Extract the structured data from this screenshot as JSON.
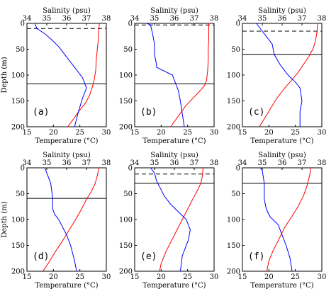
{
  "chart_data": [
    {
      "type": "line",
      "panel_label": "(a)",
      "top_xlabel": "Salinity (psu)",
      "bottom_xlabel": "Temperature (°C)",
      "ylabel": "Depth (m)",
      "salinity_ticks": [
        "34",
        "35",
        "36",
        "37",
        "38"
      ],
      "temperature_ticks": [
        "15",
        "20",
        "25",
        "30"
      ],
      "depth_ticks": [
        "0",
        "50",
        "100",
        "150",
        "200"
      ],
      "xlim_salinity": [
        34,
        38
      ],
      "xlim_temperature": [
        15,
        30
      ],
      "ylim_depth": [
        0,
        200
      ],
      "mixed_layer_depth": 10,
      "thermocline_depth": 117,
      "series": [
        {
          "color": "#ff0000",
          "x": [
            28.7,
            28.6,
            28.5,
            28.3,
            28.1,
            28.0,
            27.7,
            27.3,
            26.8,
            26.0,
            24.8,
            23.8,
            22.7
          ],
          "depth": [
            0,
            10,
            30,
            50,
            70,
            90,
            110,
            125,
            140,
            155,
            170,
            185,
            200
          ]
        },
        {
          "color": "#0000ff",
          "x": [
            34.4,
            34.5,
            34.9,
            35.2,
            35.6,
            35.9,
            36.2,
            36.5,
            36.8,
            37.0,
            36.8,
            36.6,
            36.4
          ],
          "depth": [
            0,
            10,
            20,
            30,
            45,
            60,
            75,
            90,
            105,
            125,
            145,
            170,
            200
          ]
        }
      ]
    },
    {
      "type": "line",
      "panel_label": "(b)",
      "top_xlabel": "Salinity (psu)",
      "bottom_xlabel": "Temperature (°C)",
      "ylabel": "",
      "salinity_ticks": [
        "34",
        "35",
        "36",
        "37",
        "38"
      ],
      "temperature_ticks": [
        "15",
        "20",
        "25",
        "30"
      ],
      "depth_ticks": [
        "0",
        "50",
        "100",
        "150",
        "200"
      ],
      "xlim_salinity": [
        34,
        38
      ],
      "xlim_temperature": [
        15,
        30
      ],
      "ylim_depth": [
        0,
        200
      ],
      "mixed_layer_depth": 3,
      "thermocline_depth": 117,
      "series": [
        {
          "color": "#ff0000",
          "x": [
            29.0,
            29.0,
            29.0,
            28.9,
            28.9,
            28.8,
            28.6,
            28.2,
            27.4,
            26.0,
            24.6,
            23.2,
            21.8
          ],
          "depth": [
            0,
            10,
            30,
            50,
            70,
            90,
            110,
            120,
            130,
            145,
            160,
            180,
            200
          ]
        },
        {
          "color": "#0000ff",
          "x": [
            34.6,
            34.8,
            34.9,
            35.0,
            35.0,
            35.1,
            35.1,
            35.9,
            36.2,
            36.3,
            36.4,
            36.5
          ],
          "depth": [
            0,
            3,
            20,
            40,
            60,
            80,
            85,
            100,
            130,
            150,
            175,
            200
          ]
        }
      ]
    },
    {
      "type": "line",
      "panel_label": "(c)",
      "top_xlabel": "Salinity (psu)",
      "bottom_xlabel": "Temperature (°C)",
      "ylabel": "",
      "salinity_ticks": [
        "34",
        "35",
        "36",
        "37",
        "38"
      ],
      "temperature_ticks": [
        "15",
        "20",
        "25",
        "30"
      ],
      "depth_ticks": [
        "0",
        "50",
        "100",
        "150",
        "200"
      ],
      "xlim_salinity": [
        34,
        38
      ],
      "xlim_temperature": [
        15,
        30
      ],
      "ylim_depth": [
        0,
        200
      ],
      "mixed_layer_depth": 15,
      "thermocline_depth": 60,
      "series": [
        {
          "color": "#ff0000",
          "x": [
            29.2,
            29.1,
            28.8,
            28.3,
            27.5,
            26.5,
            25.5,
            24.3,
            23.0,
            21.5,
            20.0,
            18.2
          ],
          "depth": [
            0,
            15,
            35,
            50,
            65,
            80,
            95,
            110,
            125,
            145,
            170,
            200
          ]
        },
        {
          "color": "#0000ff",
          "x": [
            34.7,
            35.0,
            35.2,
            35.5,
            35.6,
            35.9,
            36.3,
            36.7,
            36.9,
            37.0,
            36.9,
            36.9
          ],
          "depth": [
            0,
            15,
            25,
            40,
            60,
            80,
            100,
            115,
            125,
            150,
            170,
            200
          ]
        }
      ]
    },
    {
      "type": "line",
      "panel_label": "(d)",
      "top_xlabel": "Salinity (psu)",
      "bottom_xlabel": "Temperature (°C)",
      "ylabel": "Depth (m)",
      "salinity_ticks": [
        "34",
        "35",
        "36",
        "37",
        "38"
      ],
      "temperature_ticks": [
        "15",
        "20",
        "25",
        "30"
      ],
      "depth_ticks": [
        "0",
        "50",
        "100",
        "150",
        "200"
      ],
      "xlim_salinity": [
        34,
        38
      ],
      "xlim_temperature": [
        15,
        30
      ],
      "ylim_depth": [
        0,
        200
      ],
      "mixed_layer_depth": 0,
      "thermocline_depth": 59,
      "series": [
        {
          "color": "#ff0000",
          "x": [
            28.6,
            28.3,
            27.9,
            27.2,
            26.3,
            25.3,
            24.2,
            23.0,
            21.8,
            20.5,
            19.0,
            18.0
          ],
          "depth": [
            0,
            15,
            30,
            45,
            60,
            80,
            100,
            120,
            140,
            160,
            185,
            200
          ]
        },
        {
          "color": "#0000ff",
          "x": [
            34.9,
            35.0,
            35.2,
            35.3,
            35.3,
            35.4,
            35.6,
            35.8,
            36.0,
            36.2,
            36.4,
            36.5
          ],
          "depth": [
            0,
            10,
            30,
            60,
            80,
            90,
            100,
            115,
            130,
            150,
            180,
            200
          ]
        }
      ]
    },
    {
      "type": "line",
      "panel_label": "(e)",
      "top_xlabel": "Salinity (psu)",
      "bottom_xlabel": "Temperature (°C)",
      "ylabel": "",
      "salinity_ticks": [
        "34",
        "35",
        "36",
        "37",
        "38"
      ],
      "temperature_ticks": [
        "15",
        "20",
        "25",
        "30"
      ],
      "depth_ticks": [
        "0",
        "50",
        "100",
        "150",
        "200"
      ],
      "xlim_salinity": [
        34,
        38
      ],
      "xlim_temperature": [
        15,
        30
      ],
      "ylim_depth": [
        0,
        200
      ],
      "mixed_layer_depth": 12,
      "thermocline_depth": 30,
      "series": [
        {
          "color": "#ff0000",
          "x": [
            27.9,
            27.8,
            27.5,
            26.8,
            26.0,
            25.0,
            24.0,
            23.0,
            22.0,
            21.0,
            20.0,
            19.7
          ],
          "depth": [
            0,
            15,
            30,
            45,
            60,
            80,
            100,
            120,
            140,
            160,
            185,
            200
          ]
        },
        {
          "color": "#0000ff",
          "x": [
            34.8,
            35.0,
            35.1,
            35.3,
            35.5,
            35.8,
            36.2,
            36.6,
            36.8,
            36.7,
            36.4,
            36.3
          ],
          "depth": [
            0,
            10,
            25,
            40,
            55,
            70,
            85,
            100,
            120,
            140,
            170,
            200
          ]
        }
      ]
    },
    {
      "type": "line",
      "panel_label": "(f)",
      "top_xlabel": "Salinity (psu)",
      "bottom_xlabel": "Temperature (°C)",
      "ylabel": "",
      "salinity_ticks": [
        "34",
        "35",
        "36",
        "37",
        "38"
      ],
      "temperature_ticks": [
        "15",
        "20",
        "25",
        "30"
      ],
      "depth_ticks": [
        "0",
        "50",
        "100",
        "150",
        "200"
      ],
      "xlim_salinity": [
        34,
        38
      ],
      "xlim_temperature": [
        15,
        30
      ],
      "ylim_depth": [
        0,
        200
      ],
      "mixed_layer_depth": 0,
      "thermocline_depth": 30,
      "series": [
        {
          "color": "#ff0000",
          "x": [
            27.9,
            27.7,
            27.2,
            26.5,
            25.5,
            24.3,
            23.0,
            21.8,
            20.8,
            20.0,
            19.6
          ],
          "depth": [
            0,
            15,
            35,
            55,
            75,
            95,
            115,
            140,
            160,
            180,
            200
          ]
        },
        {
          "color": "#0000ff",
          "x": [
            34.9,
            35.0,
            35.1,
            35.1,
            35.2,
            35.4,
            35.8,
            36.0,
            36.2,
            36.4,
            36.5
          ],
          "depth": [
            0,
            5,
            30,
            60,
            80,
            95,
            110,
            130,
            150,
            175,
            200
          ]
        }
      ]
    }
  ]
}
